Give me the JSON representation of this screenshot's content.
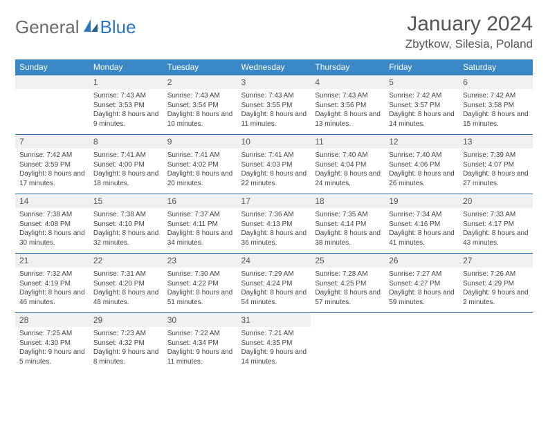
{
  "logo": {
    "word1": "General",
    "word2": "Blue"
  },
  "title": "January 2024",
  "location": "Zbytkow, Silesia, Poland",
  "colors": {
    "header_bg": "#3b88c6",
    "header_text": "#ffffff",
    "row_border": "#2f6ea3",
    "daynum_bg": "#f0f0f0",
    "text": "#444444"
  },
  "weekdays": [
    "Sunday",
    "Monday",
    "Tuesday",
    "Wednesday",
    "Thursday",
    "Friday",
    "Saturday"
  ],
  "weeks": [
    [
      {
        "blank": true
      },
      {
        "n": "1",
        "sr": "7:43 AM",
        "ss": "3:53 PM",
        "dl": "8 hours and 9 minutes."
      },
      {
        "n": "2",
        "sr": "7:43 AM",
        "ss": "3:54 PM",
        "dl": "8 hours and 10 minutes."
      },
      {
        "n": "3",
        "sr": "7:43 AM",
        "ss": "3:55 PM",
        "dl": "8 hours and 11 minutes."
      },
      {
        "n": "4",
        "sr": "7:43 AM",
        "ss": "3:56 PM",
        "dl": "8 hours and 13 minutes."
      },
      {
        "n": "5",
        "sr": "7:42 AM",
        "ss": "3:57 PM",
        "dl": "8 hours and 14 minutes."
      },
      {
        "n": "6",
        "sr": "7:42 AM",
        "ss": "3:58 PM",
        "dl": "8 hours and 15 minutes."
      }
    ],
    [
      {
        "n": "7",
        "sr": "7:42 AM",
        "ss": "3:59 PM",
        "dl": "8 hours and 17 minutes."
      },
      {
        "n": "8",
        "sr": "7:41 AM",
        "ss": "4:00 PM",
        "dl": "8 hours and 18 minutes."
      },
      {
        "n": "9",
        "sr": "7:41 AM",
        "ss": "4:02 PM",
        "dl": "8 hours and 20 minutes."
      },
      {
        "n": "10",
        "sr": "7:41 AM",
        "ss": "4:03 PM",
        "dl": "8 hours and 22 minutes."
      },
      {
        "n": "11",
        "sr": "7:40 AM",
        "ss": "4:04 PM",
        "dl": "8 hours and 24 minutes."
      },
      {
        "n": "12",
        "sr": "7:40 AM",
        "ss": "4:06 PM",
        "dl": "8 hours and 26 minutes."
      },
      {
        "n": "13",
        "sr": "7:39 AM",
        "ss": "4:07 PM",
        "dl": "8 hours and 27 minutes."
      }
    ],
    [
      {
        "n": "14",
        "sr": "7:38 AM",
        "ss": "4:08 PM",
        "dl": "8 hours and 30 minutes."
      },
      {
        "n": "15",
        "sr": "7:38 AM",
        "ss": "4:10 PM",
        "dl": "8 hours and 32 minutes."
      },
      {
        "n": "16",
        "sr": "7:37 AM",
        "ss": "4:11 PM",
        "dl": "8 hours and 34 minutes."
      },
      {
        "n": "17",
        "sr": "7:36 AM",
        "ss": "4:13 PM",
        "dl": "8 hours and 36 minutes."
      },
      {
        "n": "18",
        "sr": "7:35 AM",
        "ss": "4:14 PM",
        "dl": "8 hours and 38 minutes."
      },
      {
        "n": "19",
        "sr": "7:34 AM",
        "ss": "4:16 PM",
        "dl": "8 hours and 41 minutes."
      },
      {
        "n": "20",
        "sr": "7:33 AM",
        "ss": "4:17 PM",
        "dl": "8 hours and 43 minutes."
      }
    ],
    [
      {
        "n": "21",
        "sr": "7:32 AM",
        "ss": "4:19 PM",
        "dl": "8 hours and 46 minutes."
      },
      {
        "n": "22",
        "sr": "7:31 AM",
        "ss": "4:20 PM",
        "dl": "8 hours and 48 minutes."
      },
      {
        "n": "23",
        "sr": "7:30 AM",
        "ss": "4:22 PM",
        "dl": "8 hours and 51 minutes."
      },
      {
        "n": "24",
        "sr": "7:29 AM",
        "ss": "4:24 PM",
        "dl": "8 hours and 54 minutes."
      },
      {
        "n": "25",
        "sr": "7:28 AM",
        "ss": "4:25 PM",
        "dl": "8 hours and 57 minutes."
      },
      {
        "n": "26",
        "sr": "7:27 AM",
        "ss": "4:27 PM",
        "dl": "8 hours and 59 minutes."
      },
      {
        "n": "27",
        "sr": "7:26 AM",
        "ss": "4:29 PM",
        "dl": "9 hours and 2 minutes."
      }
    ],
    [
      {
        "n": "28",
        "sr": "7:25 AM",
        "ss": "4:30 PM",
        "dl": "9 hours and 5 minutes."
      },
      {
        "n": "29",
        "sr": "7:23 AM",
        "ss": "4:32 PM",
        "dl": "9 hours and 8 minutes."
      },
      {
        "n": "30",
        "sr": "7:22 AM",
        "ss": "4:34 PM",
        "dl": "9 hours and 11 minutes."
      },
      {
        "n": "31",
        "sr": "7:21 AM",
        "ss": "4:35 PM",
        "dl": "9 hours and 14 minutes."
      },
      {
        "blank": true
      },
      {
        "blank": true
      },
      {
        "blank": true
      }
    ]
  ],
  "labels": {
    "sunrise": "Sunrise:",
    "sunset": "Sunset:",
    "daylight": "Daylight:"
  }
}
